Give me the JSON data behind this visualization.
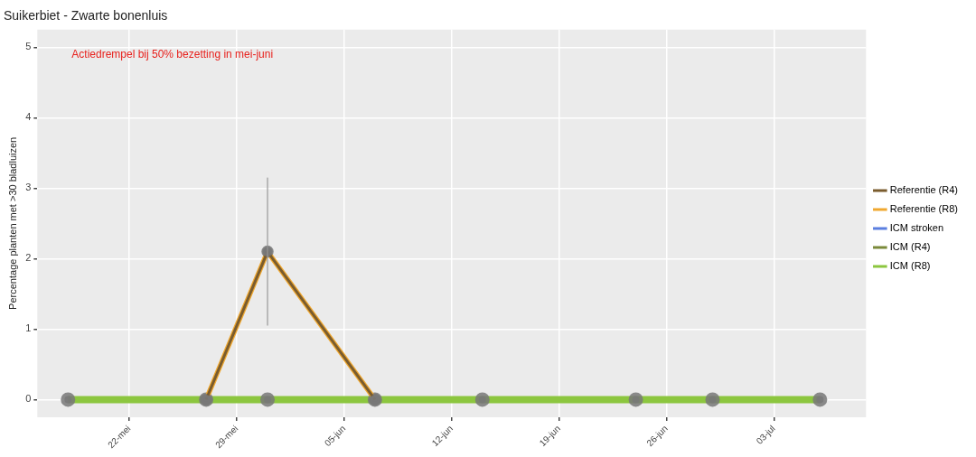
{
  "chart_data": {
    "type": "line",
    "title": "Suikerbiet - Zwarte bonenluis",
    "ylabel": "Percentage planten met >30 bladluizen",
    "annotations": [
      "Actiedrempel bij 50% bezetting in mei-juni"
    ],
    "xlim": [
      "--05-16",
      "--07-09"
    ],
    "xticks": [
      {
        "value": "--05-22",
        "label": "22-mei"
      },
      {
        "value": "--05-29",
        "label": "29-mei"
      },
      {
        "value": "--06-05",
        "label": "05-jun"
      },
      {
        "value": "--06-12",
        "label": "12-jun"
      },
      {
        "value": "--06-19",
        "label": "19-jun"
      },
      {
        "value": "--06-26",
        "label": "26-jun"
      },
      {
        "value": "--07-03",
        "label": "03-jul"
      }
    ],
    "ylim": [
      -0.25,
      5.25
    ],
    "yticks": [
      0,
      1,
      2,
      3,
      4,
      5
    ],
    "grid": true,
    "legend": "right",
    "marker": "circle",
    "line_style": "solid",
    "series": [
      {
        "name": "Referentie (R4)",
        "color": "#7a5c2e",
        "x": [
          "--05-27",
          "--05-31",
          "--06-07"
        ],
        "values": [
          0,
          2.1,
          0
        ],
        "errors": [
          null,
          [
            1.05,
            3.15
          ],
          null
        ]
      },
      {
        "name": "Referentie (R8)",
        "color": "#f0a830",
        "x": [
          "--05-27",
          "--05-31",
          "--06-07"
        ],
        "values": [
          0,
          2.1,
          0
        ]
      },
      {
        "name": "ICM stroken",
        "color": "#5b7fe0"
      },
      {
        "name": "ICM (R4)",
        "color": "#7a8a3a"
      },
      {
        "name": "ICM (R8)",
        "color": "#8cc63f",
        "x": [
          "--05-18",
          "--05-27",
          "--05-31",
          "--06-07",
          "--06-14",
          "--06-24",
          "--06-29",
          "--07-06"
        ],
        "values": [
          0,
          0,
          0,
          0,
          0,
          0,
          0,
          0
        ]
      }
    ]
  }
}
